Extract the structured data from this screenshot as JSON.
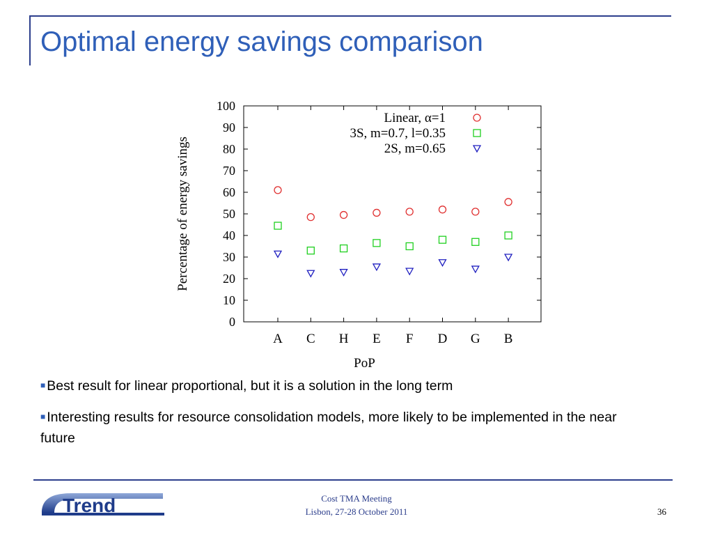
{
  "slide": {
    "title": "Optimal energy savings comparison",
    "bullets": [
      "Best result for linear proportional, but it is a solution in the long term",
      "Interesting results for resource consolidation models, more likely to be implemented in the near future"
    ],
    "footer": {
      "line1": "Cost TMA Meeting",
      "line2": "Lisbon, 27-28 October 2011",
      "page_number": "36"
    },
    "logo_text": "Trend",
    "colors": {
      "title": "#2f5fb8",
      "rule": "#2c3e8c"
    }
  },
  "chart_data": {
    "type": "scatter",
    "xlabel": "PoP",
    "ylabel": "Percentage of energy savings",
    "categories": [
      "A",
      "C",
      "H",
      "E",
      "F",
      "D",
      "G",
      "B"
    ],
    "ylim": [
      0,
      100
    ],
    "yticks": [
      0,
      10,
      20,
      30,
      40,
      50,
      60,
      70,
      80,
      90,
      100
    ],
    "grid": false,
    "legend_position": "top-right",
    "series": [
      {
        "name": "Linear, α=1",
        "marker": "circle",
        "color": "#e03030",
        "values": [
          61,
          48.5,
          49.5,
          50.5,
          51,
          52,
          51,
          55.5
        ]
      },
      {
        "name": "3S, m=0.7, l=0.35",
        "marker": "square",
        "color": "#20d020",
        "values": [
          44.5,
          33,
          34,
          36.5,
          35,
          38,
          37,
          40
        ]
      },
      {
        "name": "2S, m=0.65",
        "marker": "triangle-down",
        "color": "#2020c0",
        "values": [
          31.5,
          22.5,
          23,
          25.5,
          23.5,
          27.5,
          24.5,
          30
        ]
      }
    ]
  }
}
